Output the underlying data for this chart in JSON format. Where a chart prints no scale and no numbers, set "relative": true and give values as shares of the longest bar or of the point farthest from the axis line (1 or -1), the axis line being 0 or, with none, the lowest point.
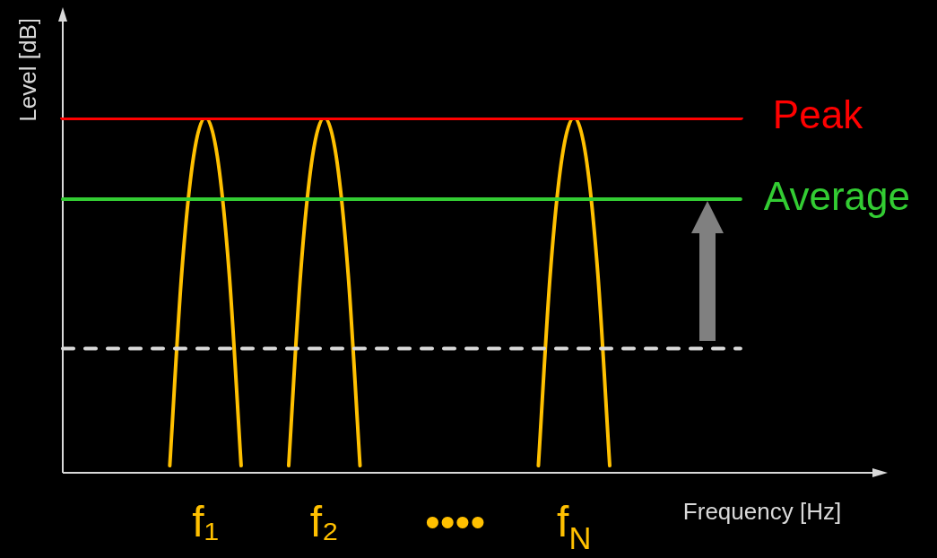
{
  "chart_data": {
    "type": "line",
    "relative": true,
    "xlabel": "Frequency [Hz]",
    "ylabel": "Level [dB]",
    "legend": false,
    "marker": "none",
    "categories": [
      null,
      null,
      null,
      null,
      null,
      null,
      null,
      null,
      null,
      null,
      null,
      null,
      "f₁",
      null,
      null,
      null,
      null,
      null,
      null,
      null,
      null,
      null,
      "f₂",
      null,
      null,
      null,
      null,
      null,
      null,
      null,
      null,
      null,
      null,
      "••••",
      null,
      null,
      null,
      null,
      null,
      null,
      null,
      null,
      null,
      "f$_{N}$",
      null,
      null,
      null,
      null,
      null,
      null,
      null,
      null,
      null,
      null,
      null,
      null,
      null,
      null,
      null,
      null,
      null,
      null,
      null,
      null,
      null,
      null,
      null,
      null,
      null,
      null
    ],
    "series": [
      {
        "name": "Peak",
        "color": "#ff0000",
        "values": [
          1,
          1,
          1,
          1,
          1,
          1,
          1,
          1,
          1,
          1,
          1,
          1,
          1,
          1,
          1,
          1,
          1,
          1,
          1,
          1,
          1,
          1,
          1,
          1,
          1,
          1,
          1,
          1,
          1,
          1,
          1,
          1,
          1,
          1,
          1,
          1,
          1,
          1,
          1,
          1,
          1,
          1,
          1,
          1,
          1,
          1,
          1,
          1,
          1,
          1,
          1,
          1,
          1,
          1,
          1,
          1,
          1,
          1,
          null,
          null,
          null,
          null,
          null,
          null,
          null,
          null,
          null,
          null,
          null,
          null
        ]
      },
      {
        "name": "Average",
        "color": "#33cc33",
        "values": [
          0.77,
          0.77,
          0.77,
          0.77,
          0.77,
          0.77,
          0.77,
          0.77,
          0.77,
          0.77,
          0.77,
          0.77,
          0.77,
          0.77,
          0.77,
          0.77,
          0.77,
          0.77,
          0.77,
          0.77,
          0.77,
          0.77,
          0.77,
          0.77,
          0.77,
          0.77,
          0.77,
          0.77,
          0.77,
          0.77,
          0.77,
          0.77,
          0.77,
          0.77,
          0.77,
          0.77,
          0.77,
          0.77,
          0.77,
          0.77,
          0.77,
          0.77,
          0.77,
          0.77,
          0.77,
          0.77,
          0.77,
          0.77,
          0.77,
          0.77,
          0.77,
          0.77,
          0.77,
          0.77,
          0.77,
          0.77,
          0.77,
          0.77,
          null,
          null,
          null,
          null,
          null,
          null,
          null,
          null,
          null,
          null,
          null,
          null
        ]
      },
      {
        "color": "#d9d9d9",
        "line_style": "dashed",
        "values": [
          0.35,
          0.35,
          0.35,
          0.35,
          0.35,
          0.35,
          0.35,
          0.35,
          0.35,
          0.35,
          0.35,
          0.35,
          0.35,
          0.35,
          0.35,
          0.35,
          0.35,
          0.35,
          0.35,
          0.35,
          0.35,
          0.35,
          0.35,
          0.35,
          0.35,
          0.35,
          0.35,
          0.35,
          0.35,
          0.35,
          0.35,
          0.35,
          0.35,
          0.35,
          0.35,
          0.35,
          0.35,
          0.35,
          0.35,
          0.35,
          0.35,
          0.35,
          0.35,
          0.35,
          0.35,
          0.35,
          0.35,
          0.35,
          0.35,
          0.35,
          0.35,
          0.35,
          0.35,
          0.35,
          0.35,
          0.35,
          0.35,
          0.35,
          null,
          null,
          null,
          null,
          null,
          null,
          null,
          null,
          null,
          null,
          null,
          null
        ]
      },
      {
        "color": "#ffc000",
        "values": [
          null,
          null,
          null,
          null,
          null,
          null,
          null,
          null,
          null,
          0.02,
          0.56,
          0.89,
          1,
          0.89,
          0.56,
          0.02,
          null,
          null,
          null,
          0.02,
          0.56,
          0.89,
          1,
          0.89,
          0.56,
          0.02,
          null,
          null,
          null,
          null,
          null,
          null,
          null,
          null,
          null,
          null,
          null,
          null,
          null,
          null,
          0.02,
          0.56,
          0.89,
          1,
          0.89,
          0.56,
          0.02,
          null,
          null,
          null,
          null,
          null,
          null,
          null,
          null,
          null,
          null,
          null,
          null,
          null,
          null,
          null,
          null,
          null,
          null,
          null,
          null,
          null,
          null,
          null
        ]
      }
    ]
  }
}
